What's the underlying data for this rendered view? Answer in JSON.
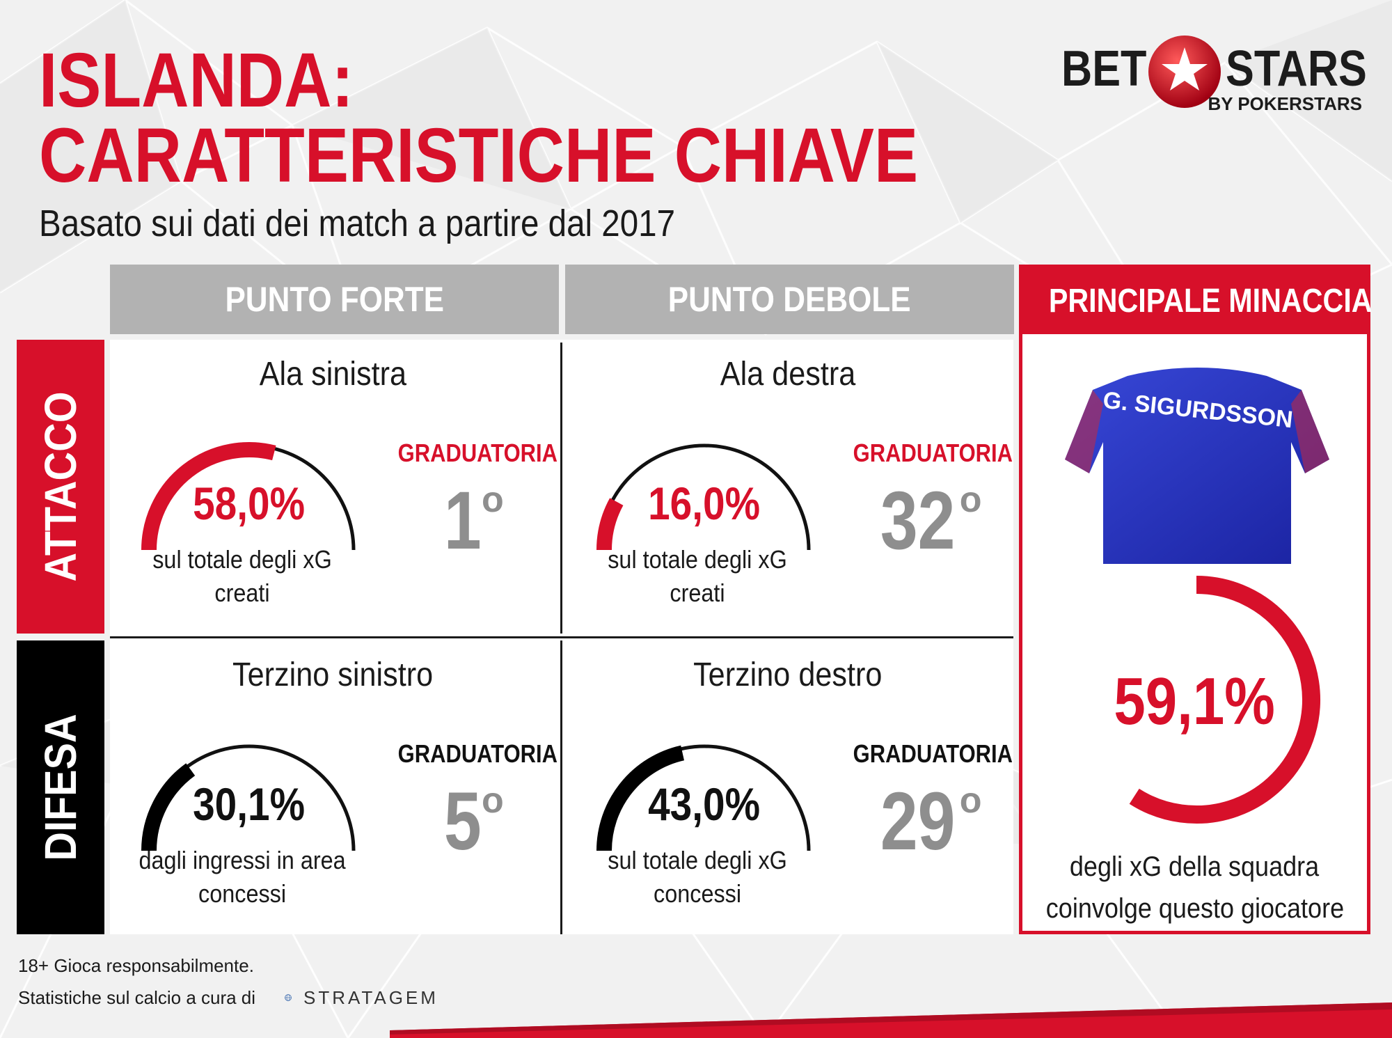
{
  "header": {
    "title_line1": "ISLANDA:",
    "title_line2": "CARATTERISTICHE CHIAVE",
    "subtitle": "Basato sui dati dei match a partire dal 2017"
  },
  "logo": {
    "bet": "BET",
    "stars": "STARS",
    "by": "BY POKERSTARS"
  },
  "columns": {
    "forte": "PUNTO FORTE",
    "debole": "PUNTO DEBOLE",
    "minaccia": "PRINCIPALE MINACCIA"
  },
  "rows": {
    "attacco": "ATTACCO",
    "difesa": "DIFESA"
  },
  "cells": {
    "att_forte": {
      "name": "Ala sinistra",
      "pct": "58,0%",
      "value": 58.0,
      "desc1": "sul totale degli xG creati",
      "desc2": "",
      "grad_label": "GRADUATORIA",
      "rank": "1",
      "deg": "o",
      "color": "#d7102a"
    },
    "att_debole": {
      "name": "Ala destra",
      "pct": "16,0%",
      "value": 16.0,
      "desc1": "sul totale degli xG creati",
      "desc2": "",
      "grad_label": "GRADUATORIA",
      "rank": "32",
      "deg": "o",
      "color": "#d7102a"
    },
    "dif_forte": {
      "name": "Terzino sinistro",
      "pct": "30,1%",
      "value": 30.1,
      "desc1": "dagli ingressi in area",
      "desc2": "concessi",
      "grad_label": "GRADUATORIA",
      "rank": "5",
      "deg": "o",
      "color": "#000000"
    },
    "dif_debole": {
      "name": "Terzino destro",
      "pct": "43,0%",
      "value": 43.0,
      "desc1": "sul totale degli xG",
      "desc2": "concessi",
      "grad_label": "GRADUATORIA",
      "rank": "29",
      "deg": "o",
      "color": "#000000"
    }
  },
  "threat": {
    "player": "G. SIGURDSSON",
    "pct": "59,1%",
    "value": 59.1,
    "desc1": "degli xG della squadra",
    "desc2": "coinvolge questo giocatore"
  },
  "footer": {
    "line1": "18+ Gioca responsabilmente.",
    "line2": "Statistiche sul calcio a cura di",
    "brand": "STRATAGEM"
  },
  "colors": {
    "accent": "#d7102a",
    "header_gray": "#b2b2b2",
    "rank_gray": "#8e8e8e"
  }
}
